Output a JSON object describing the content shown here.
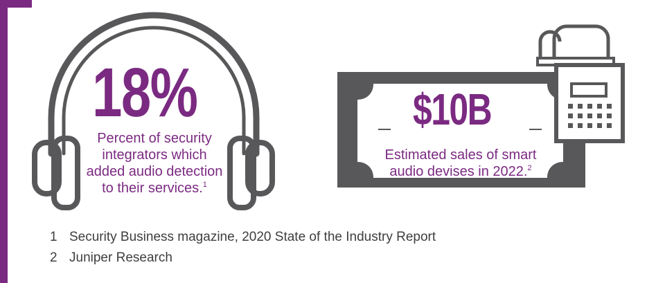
{
  "colors": {
    "accent": "#7b2a82",
    "icon_gray": "#58585a",
    "text_gray": "#3e3e40"
  },
  "stat1": {
    "value": "18%",
    "caption_lines": [
      "Percent of security",
      "integrators which",
      "added audio detection",
      "to their services."
    ],
    "footnote_ref": "1",
    "icon": "headphones-icon"
  },
  "stat2": {
    "value": "$10B",
    "caption_lines": [
      "Estimated sales of smart",
      "audio devises in 2022."
    ],
    "footnote_ref": "2",
    "icons": [
      "banknote-icon",
      "cash-register-icon"
    ]
  },
  "footnotes": [
    {
      "num": "1",
      "text": "Security Business magazine, 2020 State of the Industry Report"
    },
    {
      "num": "2",
      "text": "Juniper Research"
    }
  ]
}
